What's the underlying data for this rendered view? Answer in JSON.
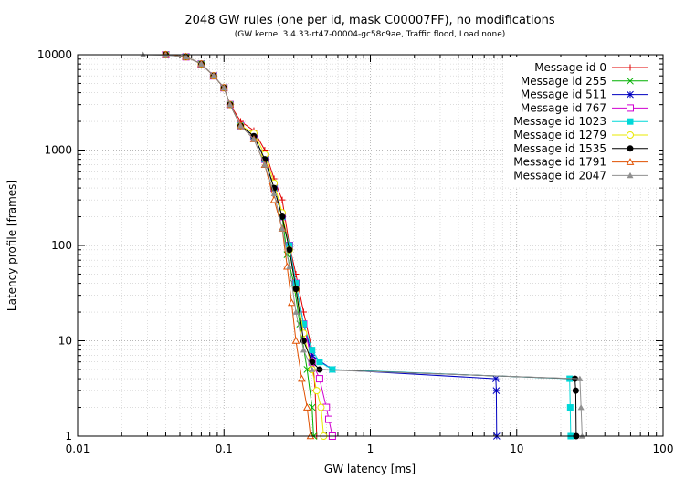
{
  "chart_data": {
    "type": "line",
    "title": "2048 GW rules (one per id, mask C00007FF), no modifications",
    "subtitle": "(GW kernel 3.4.33-rt47-00004-gc58c9ae, Traffic flood, Load none)",
    "xlabel": "GW latency [ms]",
    "ylabel": "Latency profile [frames]",
    "x_scale": "log",
    "y_scale": "log",
    "xlim": [
      0.01,
      100
    ],
    "ylim": [
      1,
      10000
    ],
    "x_ticks": [
      "0.01",
      "0.1",
      "1",
      "10",
      "100"
    ],
    "y_ticks": [
      "1",
      "10",
      "100",
      "1000",
      "10000"
    ],
    "grid": true,
    "legend_position": "top-right",
    "series": [
      {
        "name": "Message id 0",
        "color": "#e00000",
        "marker": "plus",
        "x": [
          0.04,
          0.055,
          0.07,
          0.085,
          0.1,
          0.11,
          0.13,
          0.16,
          0.19,
          0.22,
          0.25,
          0.28,
          0.31,
          0.35,
          0.4,
          0.42,
          0.43
        ],
        "y": [
          10000,
          9500,
          8000,
          6000,
          4500,
          3000,
          2000,
          1600,
          1000,
          500,
          300,
          100,
          50,
          20,
          8,
          3,
          1
        ]
      },
      {
        "name": "Message id 255",
        "color": "#00b000",
        "marker": "x",
        "x": [
          0.04,
          0.055,
          0.07,
          0.085,
          0.1,
          0.11,
          0.13,
          0.16,
          0.19,
          0.22,
          0.25,
          0.27,
          0.3,
          0.33,
          0.37,
          0.4,
          0.41
        ],
        "y": [
          10000,
          9500,
          8000,
          6000,
          4500,
          3000,
          1800,
          1400,
          800,
          400,
          200,
          80,
          40,
          15,
          5,
          2,
          1
        ]
      },
      {
        "name": "Message id 511",
        "color": "#0000c0",
        "marker": "star",
        "x": [
          0.04,
          0.055,
          0.07,
          0.085,
          0.1,
          0.11,
          0.13,
          0.16,
          0.19,
          0.22,
          0.25,
          0.28,
          0.31,
          0.35,
          0.4,
          0.55,
          7.2,
          7.25,
          7.3
        ],
        "y": [
          10000,
          9500,
          8000,
          6000,
          4500,
          3000,
          1800,
          1400,
          800,
          400,
          200,
          100,
          40,
          15,
          7,
          5,
          4,
          3,
          1
        ]
      },
      {
        "name": "Message id 767",
        "color": "#d000d0",
        "marker": "open-square",
        "x": [
          0.04,
          0.055,
          0.07,
          0.085,
          0.1,
          0.11,
          0.13,
          0.16,
          0.19,
          0.22,
          0.25,
          0.28,
          0.31,
          0.35,
          0.4,
          0.45,
          0.5,
          0.52,
          0.55
        ],
        "y": [
          10000,
          9500,
          8000,
          6000,
          4500,
          3000,
          1800,
          1400,
          800,
          400,
          200,
          100,
          40,
          15,
          6,
          4,
          2,
          1.5,
          1
        ]
      },
      {
        "name": "Message id 1023",
        "color": "#00d8d8",
        "marker": "filled-square",
        "x": [
          0.04,
          0.055,
          0.07,
          0.085,
          0.1,
          0.11,
          0.13,
          0.16,
          0.19,
          0.22,
          0.25,
          0.28,
          0.31,
          0.35,
          0.4,
          0.45,
          0.55,
          23,
          23.2,
          23.4
        ],
        "y": [
          10000,
          9500,
          8000,
          6000,
          4500,
          3000,
          1800,
          1400,
          800,
          400,
          200,
          100,
          40,
          15,
          8,
          6,
          5,
          4,
          2,
          1
        ]
      },
      {
        "name": "Message id 1279",
        "color": "#e8e800",
        "marker": "open-circle",
        "x": [
          0.04,
          0.055,
          0.07,
          0.085,
          0.1,
          0.11,
          0.13,
          0.16,
          0.19,
          0.22,
          0.25,
          0.28,
          0.31,
          0.35,
          0.4,
          0.43,
          0.46,
          0.48
        ],
        "y": [
          10000,
          9500,
          8000,
          6000,
          4500,
          3000,
          1800,
          1500,
          900,
          450,
          220,
          90,
          35,
          12,
          5,
          3,
          2,
          1
        ]
      },
      {
        "name": "Message id 1535",
        "color": "#000000",
        "marker": "filled-circle",
        "x": [
          0.04,
          0.055,
          0.07,
          0.085,
          0.1,
          0.11,
          0.13,
          0.16,
          0.19,
          0.22,
          0.25,
          0.28,
          0.31,
          0.35,
          0.4,
          0.45,
          25,
          25.3,
          25.5
        ],
        "y": [
          10000,
          9500,
          8000,
          6000,
          4500,
          3000,
          1800,
          1400,
          800,
          400,
          200,
          90,
          35,
          10,
          6,
          5,
          4,
          3,
          1
        ]
      },
      {
        "name": "Message id 1791",
        "color": "#e05000",
        "marker": "open-triangle",
        "x": [
          0.04,
          0.055,
          0.07,
          0.085,
          0.1,
          0.11,
          0.13,
          0.16,
          0.19,
          0.22,
          0.25,
          0.27,
          0.29,
          0.31,
          0.34,
          0.37,
          0.39
        ],
        "y": [
          10000,
          9500,
          8000,
          6000,
          4500,
          3000,
          1800,
          1300,
          700,
          300,
          150,
          60,
          25,
          10,
          4,
          2,
          1
        ]
      },
      {
        "name": "Message id 2047",
        "color": "#909090",
        "marker": "filled-triangle",
        "x": [
          0.028,
          0.04,
          0.055,
          0.07,
          0.085,
          0.1,
          0.11,
          0.13,
          0.16,
          0.19,
          0.22,
          0.25,
          0.28,
          0.31,
          0.35,
          0.4,
          27,
          27.5,
          28
        ],
        "y": [
          10000,
          9900,
          9500,
          8000,
          6000,
          4500,
          3000,
          1800,
          1300,
          700,
          350,
          150,
          60,
          20,
          8,
          5,
          4,
          2,
          1
        ]
      }
    ]
  }
}
